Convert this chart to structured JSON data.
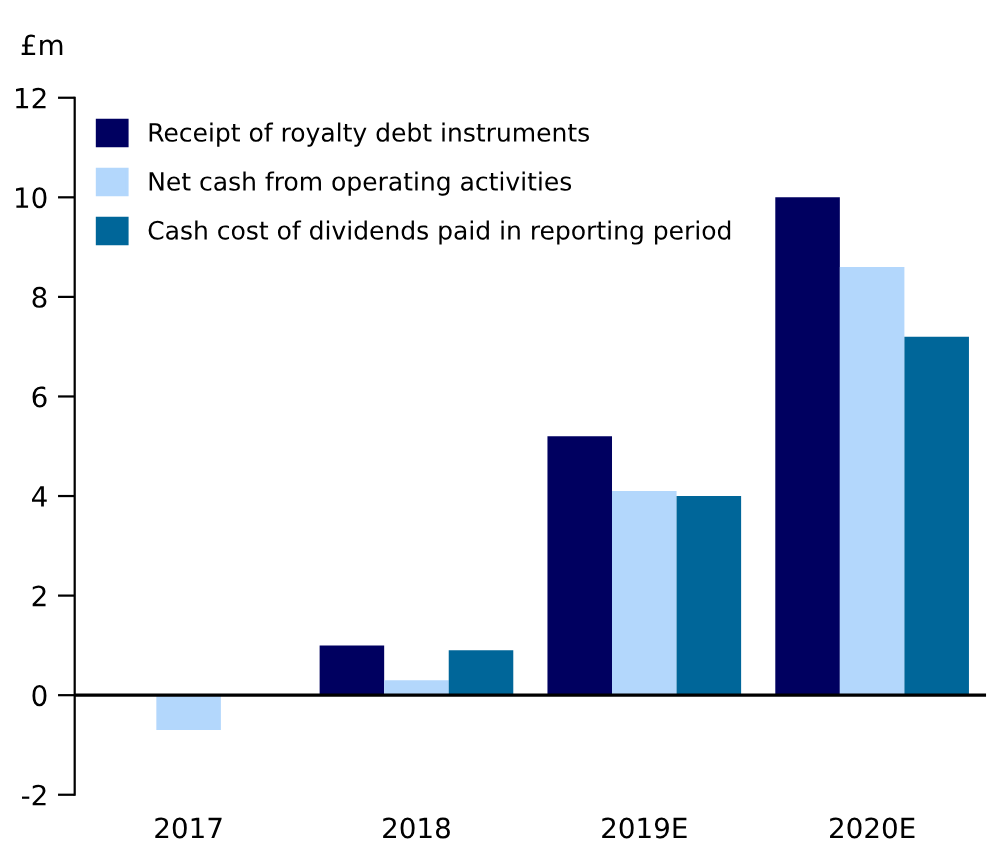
{
  "chart_data": {
    "type": "bar",
    "ylabel": "£m",
    "categories": [
      "2017",
      "2018",
      "2019E",
      "2020E"
    ],
    "series": [
      {
        "name": "Receipt of royalty debt instruments",
        "color": "#000060",
        "values": [
          0,
          1.0,
          5.2,
          10.0
        ]
      },
      {
        "name": "Net cash from operating activities",
        "color": "#b3d7fc",
        "values": [
          -0.7,
          0.3,
          4.1,
          8.6
        ]
      },
      {
        "name": "Cash cost of dividends paid in reporting period",
        "color": "#006699",
        "values": [
          0,
          0.9,
          4.0,
          7.2
        ]
      }
    ],
    "ylim": [
      -2,
      12
    ],
    "yticks": [
      {
        "value": -2,
        "label": "-2"
      },
      0,
      2,
      4,
      6,
      8,
      10,
      12
    ],
    "legend": "top left"
  }
}
